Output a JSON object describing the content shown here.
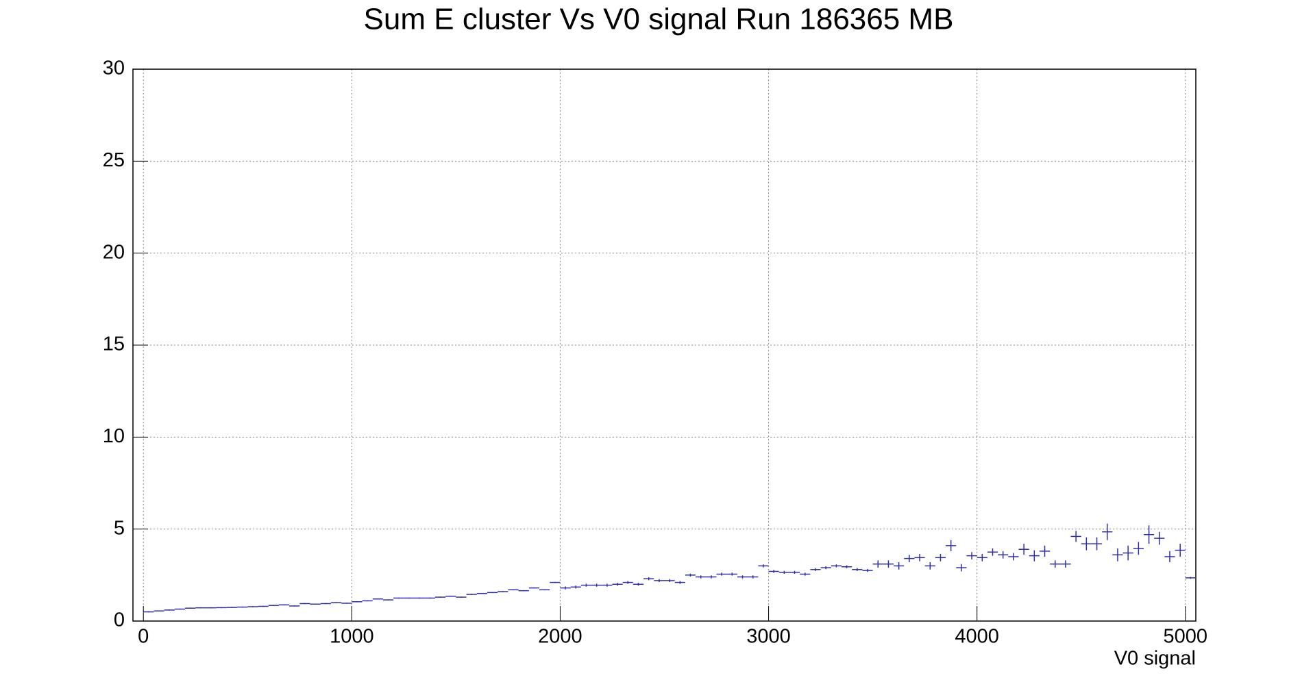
{
  "chart_data": {
    "type": "profile",
    "title": "Sum E cluster Vs V0 signal Run 186365 MB",
    "x_label": "V0 signal",
    "bin_width": 50,
    "x": [
      25,
      75,
      125,
      175,
      225,
      275,
      325,
      375,
      425,
      475,
      525,
      575,
      625,
      675,
      725,
      775,
      825,
      875,
      925,
      975,
      1025,
      1075,
      1125,
      1175,
      1225,
      1275,
      1325,
      1375,
      1425,
      1475,
      1525,
      1575,
      1625,
      1675,
      1725,
      1775,
      1825,
      1875,
      1925,
      1975,
      2025,
      2075,
      2125,
      2175,
      2225,
      2275,
      2325,
      2375,
      2425,
      2475,
      2525,
      2575,
      2625,
      2675,
      2725,
      2775,
      2825,
      2875,
      2925,
      2975,
      3025,
      3075,
      3125,
      3175,
      3225,
      3275,
      3325,
      3375,
      3425,
      3475,
      3525,
      3575,
      3625,
      3675,
      3725,
      3775,
      3825,
      3875,
      3925,
      3975,
      4025,
      4075,
      4125,
      4175,
      4225,
      4275,
      4325,
      4375,
      4425,
      4475,
      4525,
      4575,
      4625,
      4675,
      4725,
      4775,
      4825,
      4875,
      4925,
      4975,
      5025
    ],
    "values": [
      0.5,
      0.55,
      0.6,
      0.65,
      0.7,
      0.72,
      0.72,
      0.73,
      0.74,
      0.76,
      0.78,
      0.8,
      0.85,
      0.88,
      0.82,
      0.95,
      0.92,
      0.95,
      1.0,
      0.97,
      1.05,
      1.1,
      1.2,
      1.15,
      1.25,
      1.25,
      1.25,
      1.25,
      1.3,
      1.35,
      1.3,
      1.45,
      1.5,
      1.55,
      1.6,
      1.7,
      1.65,
      1.8,
      1.7,
      2.1,
      1.8,
      1.85,
      1.95,
      1.95,
      1.95,
      2.0,
      2.1,
      2.0,
      2.3,
      2.2,
      2.2,
      2.1,
      2.5,
      2.4,
      2.4,
      2.55,
      2.55,
      2.4,
      2.4,
      3.0,
      2.7,
      2.65,
      2.65,
      2.55,
      2.8,
      2.9,
      3.0,
      2.95,
      2.8,
      2.75,
      3.1,
      3.1,
      3.0,
      3.4,
      3.45,
      3.0,
      3.45,
      4.1,
      2.9,
      3.55,
      3.45,
      3.75,
      3.6,
      3.5,
      3.9,
      3.55,
      3.8,
      3.1,
      3.1,
      4.6,
      4.2,
      4.2,
      4.85,
      3.6,
      3.7,
      3.95,
      4.7,
      4.5,
      3.5,
      3.85,
      2.35
    ],
    "errors": [
      0.03,
      0.03,
      0.03,
      0.03,
      0.03,
      0.03,
      0.03,
      0.03,
      0.03,
      0.03,
      0.03,
      0.03,
      0.03,
      0.03,
      0.03,
      0.03,
      0.03,
      0.03,
      0.03,
      0.03,
      0.03,
      0.03,
      0.03,
      0.03,
      0.03,
      0.03,
      0.03,
      0.03,
      0.03,
      0.03,
      0.03,
      0.03,
      0.03,
      0.03,
      0.03,
      0.03,
      0.03,
      0.03,
      0.03,
      0.03,
      0.08,
      0.08,
      0.08,
      0.08,
      0.08,
      0.08,
      0.08,
      0.08,
      0.08,
      0.08,
      0.08,
      0.08,
      0.08,
      0.08,
      0.08,
      0.08,
      0.08,
      0.08,
      0.08,
      0.08,
      0.08,
      0.08,
      0.08,
      0.08,
      0.08,
      0.08,
      0.08,
      0.08,
      0.08,
      0.08,
      0.2,
      0.2,
      0.2,
      0.2,
      0.2,
      0.2,
      0.2,
      0.3,
      0.2,
      0.2,
      0.2,
      0.2,
      0.2,
      0.2,
      0.3,
      0.3,
      0.3,
      0.2,
      0.2,
      0.3,
      0.35,
      0.35,
      0.45,
      0.35,
      0.4,
      0.35,
      0.5,
      0.35,
      0.3,
      0.35,
      0.05
    ],
    "color": "#2e2ea8",
    "xlim": [
      -50,
      5050
    ],
    "xticks": [
      0,
      1000,
      2000,
      3000,
      4000,
      5000
    ],
    "ylim": [
      0,
      30
    ],
    "yticks": [
      0,
      5,
      10,
      15,
      20,
      25,
      30
    ],
    "grid": true
  }
}
